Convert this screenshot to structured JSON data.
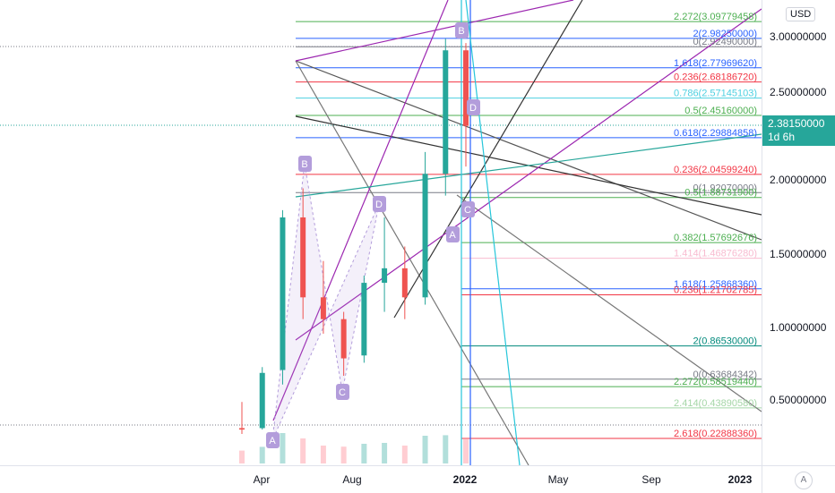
{
  "colors": {
    "up": "#26a69a",
    "down": "#ef5350",
    "volume_up": "#b2dfdb",
    "volume_down": "#ffcdd2",
    "pattern": "#b39ddb",
    "fib_blue": "#2962ff",
    "fib_red": "#f23645",
    "fib_green": "#4caf50",
    "channel_purple": "#9c27b0"
  },
  "price_axis": {
    "currency": "USD",
    "ticks": [
      "3.00000000",
      "2.50000000",
      "2.00000000",
      "1.50000000",
      "1.00000000",
      "0.50000000"
    ],
    "last_price": "2.38150000",
    "countdown": "1d 6h"
  },
  "time_axis": {
    "ticks": [
      {
        "label": "Apr",
        "year": false
      },
      {
        "label": "Aug",
        "year": false
      },
      {
        "label": "2022",
        "year": true
      },
      {
        "label": "May",
        "year": false
      },
      {
        "label": "Sep",
        "year": false
      },
      {
        "label": "2023",
        "year": true
      }
    ],
    "auto_label": "A"
  },
  "chart_data": {
    "type": "candlestick",
    "title": "",
    "xlabel": "",
    "ylabel": "",
    "ylim": [
      0.13,
      3.25
    ],
    "grid": false,
    "x_range": [
      "2021-01-30",
      "2023-01-31"
    ],
    "approx_series_weekly": [
      {
        "week": "2021-03",
        "o": 0.3,
        "h": 0.48,
        "l": 0.26,
        "c": 0.29
      },
      {
        "week": "2021-04",
        "o": 0.3,
        "h": 0.72,
        "l": 0.29,
        "c": 0.68
      },
      {
        "week": "2021-04b",
        "o": 0.7,
        "h": 1.8,
        "l": 0.6,
        "c": 1.75
      },
      {
        "week": "2021-05",
        "o": 1.75,
        "h": 1.95,
        "l": 1.05,
        "c": 1.2
      },
      {
        "week": "2021-06",
        "o": 1.2,
        "h": 1.45,
        "l": 0.95,
        "c": 1.05
      },
      {
        "week": "2021-07",
        "o": 1.05,
        "h": 1.1,
        "l": 0.66,
        "c": 0.78
      },
      {
        "week": "2021-08",
        "o": 0.8,
        "h": 1.35,
        "l": 0.75,
        "c": 1.3
      },
      {
        "week": "2021-09",
        "o": 1.3,
        "h": 1.75,
        "l": 1.1,
        "c": 1.4
      },
      {
        "week": "2021-10",
        "o": 1.4,
        "h": 1.55,
        "l": 1.05,
        "c": 1.2
      },
      {
        "week": "2021-11",
        "o": 1.2,
        "h": 2.2,
        "l": 1.15,
        "c": 2.05
      },
      {
        "week": "2021-12",
        "o": 2.05,
        "h": 2.98,
        "l": 1.9,
        "c": 2.9
      },
      {
        "week": "2022-01",
        "o": 2.9,
        "h": 2.95,
        "l": 2.1,
        "c": 2.38
      }
    ],
    "annotations": {
      "pattern_points": [
        "A",
        "B",
        "C",
        "D",
        "A",
        "B",
        "C",
        "D"
      ],
      "fib_levels_right": [
        {
          "text": "2.272(3.09779458)",
          "color": "#4caf50"
        },
        {
          "text": "2(2.98250000)",
          "color": "#2962ff"
        },
        {
          "text": "0(2.92490000)",
          "color": "#787b86"
        },
        {
          "text": "1.618(2.77969620)",
          "color": "#2962ff"
        },
        {
          "text": "0.236(2.68186720)",
          "color": "#f23645"
        },
        {
          "text": "0.786(2.57145103)",
          "color": "#4dd0e1"
        },
        {
          "text": "0.5(2.45160000)",
          "color": "#4caf50"
        },
        {
          "text": "0.618(2.29884858)",
          "color": "#2962ff"
        },
        {
          "text": "0.236(2.04599240)",
          "color": "#f23645"
        },
        {
          "text": "0(1.92070000)",
          "color": "#787b86"
        },
        {
          "text": "0.5(1.88731900)",
          "color": "#4caf50"
        },
        {
          "text": "0.382(1.57692676)",
          "color": "#4caf50"
        },
        {
          "text": "1.414(1.46876280)",
          "color": "#f8bbd0"
        },
        {
          "text": "1.618(1.25868360)",
          "color": "#2962ff"
        },
        {
          "text": "0.236(1.21702785)",
          "color": "#f23645"
        },
        {
          "text": "2(0.86530000)",
          "color": "#00897b"
        },
        {
          "text": "0(0.63684342)",
          "color": "#787b86"
        },
        {
          "text": "2.272(0.58519440)",
          "color": "#4caf50"
        },
        {
          "text": "2.414(0.43890580)",
          "color": "#a5d6a7"
        },
        {
          "text": "2.618(0.22888360)",
          "color": "#f23645"
        }
      ]
    }
  }
}
